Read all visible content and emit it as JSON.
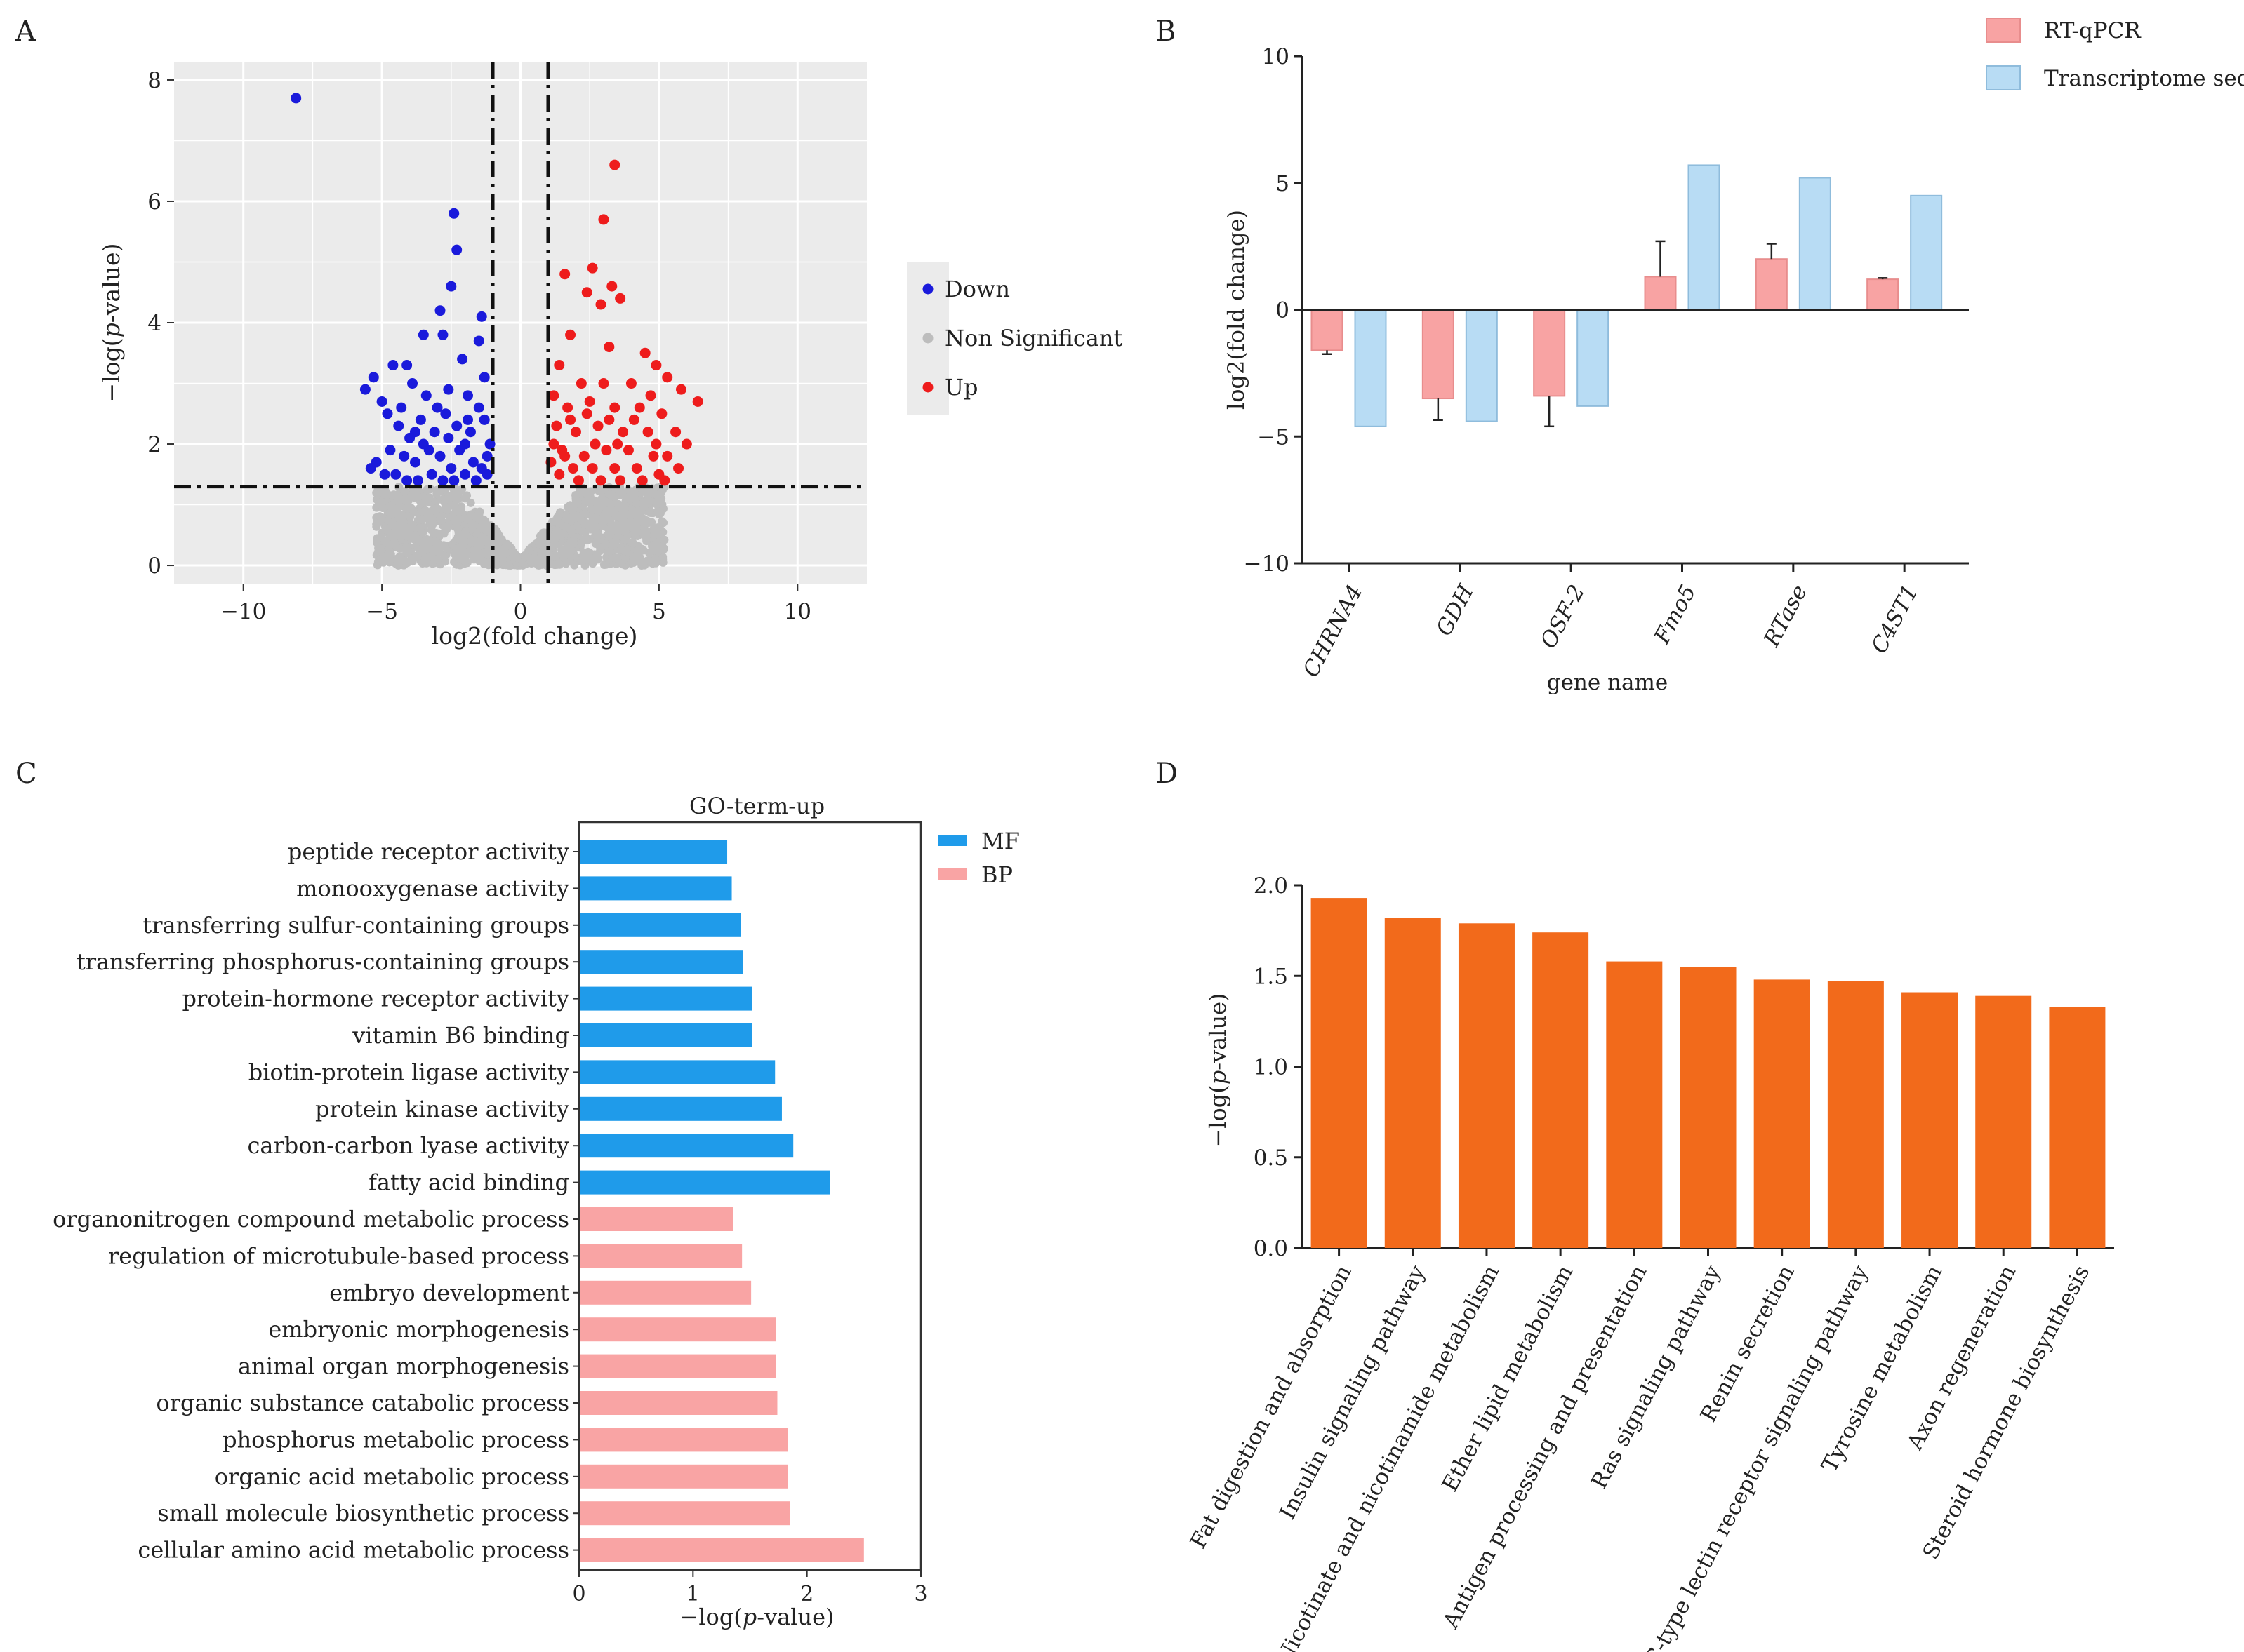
{
  "colors": {
    "down": "#1a1adb",
    "up": "#ee1c1c",
    "nonsig": "#bdbdbd",
    "panel_bg": "#ebebeb",
    "grid": "#ffffff",
    "rtqpcr": "#f8a3a3",
    "transcriptome": "#b8dcf4",
    "mf": "#1f9bea",
    "bp": "#f9a4a4",
    "kegg": "#f26a1b"
  },
  "panels": {
    "a": "A",
    "b": "B",
    "c": "C",
    "d": "D"
  },
  "chart_data": [
    {
      "id": "A",
      "type": "scatter",
      "title": "",
      "xlabel": "log2(fold change)",
      "ylabel_parts": [
        "−log(",
        "p",
        "-value)"
      ],
      "xlim": [
        -12.5,
        12.5
      ],
      "ylim": [
        -0.3,
        8.3
      ],
      "xticks": [
        -10,
        -5,
        0,
        5,
        10
      ],
      "xtick_labels": [
        "−10",
        "−5",
        "0",
        "5",
        "10"
      ],
      "yticks": [
        0,
        2,
        4,
        6,
        8
      ],
      "ytick_labels": [
        "0",
        "2",
        "4",
        "6",
        "8"
      ],
      "thresholds": {
        "x": [
          -1,
          1
        ],
        "y": 1.3
      },
      "legend": [
        "Down",
        "Non Significant",
        "Up"
      ],
      "legend_position": "right",
      "series": [
        {
          "name": "Down",
          "points": [
            [
              -8.1,
              7.7
            ],
            [
              -2.4,
              5.8
            ],
            [
              -2.3,
              5.2
            ],
            [
              -2.5,
              4.6
            ],
            [
              -2.9,
              4.2
            ],
            [
              -1.4,
              4.1
            ],
            [
              -3.5,
              3.8
            ],
            [
              -5.3,
              3.1
            ],
            [
              -5.6,
              2.9
            ],
            [
              -5.0,
              2.7
            ],
            [
              -4.6,
              3.3
            ],
            [
              -4.1,
              3.3
            ],
            [
              -2.8,
              3.8
            ],
            [
              -2.1,
              3.4
            ],
            [
              -1.5,
              3.7
            ],
            [
              -1.3,
              3.1
            ],
            [
              -3.9,
              3.0
            ],
            [
              -3.4,
              2.8
            ],
            [
              -2.6,
              2.9
            ],
            [
              -1.9,
              2.8
            ],
            [
              -4.8,
              2.5
            ],
            [
              -4.4,
              2.3
            ],
            [
              -4.0,
              2.1
            ],
            [
              -3.6,
              2.4
            ],
            [
              -3.1,
              2.2
            ],
            [
              -2.7,
              2.5
            ],
            [
              -2.3,
              2.3
            ],
            [
              -1.8,
              2.2
            ],
            [
              -1.3,
              2.4
            ],
            [
              -4.7,
              1.9
            ],
            [
              -4.2,
              1.8
            ],
            [
              -3.8,
              1.7
            ],
            [
              -3.3,
              1.9
            ],
            [
              -2.9,
              1.8
            ],
            [
              -2.5,
              1.6
            ],
            [
              -2.2,
              1.9
            ],
            [
              -1.7,
              1.7
            ],
            [
              -1.2,
              1.8
            ],
            [
              -5.2,
              1.7
            ],
            [
              -4.9,
              1.5
            ],
            [
              -4.5,
              1.5
            ],
            [
              -4.1,
              1.4
            ],
            [
              -3.7,
              1.4
            ],
            [
              -3.2,
              1.5
            ],
            [
              -2.8,
              1.4
            ],
            [
              -2.4,
              1.4
            ],
            [
              -2.0,
              1.5
            ],
            [
              -1.6,
              1.4
            ],
            [
              -1.2,
              1.5
            ],
            [
              -3.5,
              2.0
            ],
            [
              -3.0,
              2.6
            ],
            [
              -2.0,
              2.0
            ],
            [
              -1.5,
              2.6
            ],
            [
              -1.4,
              1.6
            ],
            [
              -1.1,
              2.0
            ],
            [
              -5.4,
              1.6
            ],
            [
              -4.3,
              2.6
            ],
            [
              -3.8,
              2.2
            ],
            [
              -2.6,
              2.1
            ],
            [
              -1.9,
              2.4
            ]
          ]
        },
        {
          "name": "Up",
          "points": [
            [
              3.4,
              6.6
            ],
            [
              3.0,
              5.7
            ],
            [
              2.6,
              4.9
            ],
            [
              3.6,
              4.4
            ],
            [
              2.9,
              4.3
            ],
            [
              3.3,
              4.6
            ],
            [
              1.8,
              3.8
            ],
            [
              3.2,
              3.6
            ],
            [
              1.6,
              4.8
            ],
            [
              2.4,
              4.5
            ],
            [
              4.5,
              3.5
            ],
            [
              4.9,
              3.3
            ],
            [
              5.3,
              3.1
            ],
            [
              5.8,
              2.9
            ],
            [
              6.4,
              2.7
            ],
            [
              1.4,
              3.3
            ],
            [
              2.2,
              3.0
            ],
            [
              3.0,
              3.0
            ],
            [
              4.0,
              3.0
            ],
            [
              4.7,
              2.8
            ],
            [
              1.2,
              2.8
            ],
            [
              1.7,
              2.6
            ],
            [
              2.5,
              2.7
            ],
            [
              3.4,
              2.6
            ],
            [
              4.3,
              2.6
            ],
            [
              5.1,
              2.5
            ],
            [
              5.6,
              2.2
            ],
            [
              1.3,
              2.3
            ],
            [
              2.0,
              2.2
            ],
            [
              2.8,
              2.3
            ],
            [
              3.7,
              2.2
            ],
            [
              4.6,
              2.2
            ],
            [
              5.3,
              1.8
            ],
            [
              6.0,
              2.0
            ],
            [
              1.5,
              1.9
            ],
            [
              2.3,
              1.8
            ],
            [
              3.1,
              1.9
            ],
            [
              3.9,
              1.9
            ],
            [
              4.8,
              1.8
            ],
            [
              1.1,
              1.7
            ],
            [
              1.9,
              1.6
            ],
            [
              2.6,
              1.6
            ],
            [
              3.4,
              1.6
            ],
            [
              4.2,
              1.6
            ],
            [
              5.0,
              1.5
            ],
            [
              5.7,
              1.6
            ],
            [
              1.4,
              1.5
            ],
            [
              2.1,
              1.4
            ],
            [
              2.9,
              1.4
            ],
            [
              3.6,
              1.4
            ],
            [
              4.4,
              1.4
            ],
            [
              5.2,
              1.4
            ],
            [
              1.2,
              2.0
            ],
            [
              2.7,
              2.0
            ],
            [
              3.5,
              2.0
            ],
            [
              4.1,
              2.4
            ],
            [
              1.8,
              2.4
            ],
            [
              2.4,
              2.5
            ],
            [
              3.2,
              2.4
            ],
            [
              1.6,
              1.8
            ],
            [
              4.9,
              2.0
            ]
          ]
        }
      ]
    },
    {
      "id": "B",
      "type": "bar",
      "title": "",
      "xlabel": "gene name",
      "ylabel": "log2(fold change)",
      "ylim": [
        -10,
        10
      ],
      "yticks": [
        -10,
        -5,
        0,
        5,
        10
      ],
      "ytick_labels": [
        "−10",
        "−5",
        "0",
        "5",
        "10"
      ],
      "categories": [
        "CHRNA4",
        "GDH",
        "OSF-2",
        "Fmo5",
        "RTase",
        "C4ST1"
      ],
      "legend_position": "top-right",
      "series": [
        {
          "name": "RT-qPCR",
          "values": [
            -1.6,
            -3.5,
            -3.4,
            1.3,
            2.0,
            1.2
          ],
          "errors": [
            0.15,
            0.85,
            1.2,
            1.4,
            0.6,
            0.05
          ]
        },
        {
          "name": "Transcriptome seq",
          "values": [
            -4.6,
            -4.4,
            -3.8,
            5.7,
            5.2,
            4.5
          ]
        }
      ]
    },
    {
      "id": "C",
      "type": "bar",
      "orientation": "horizontal",
      "title": "GO-term-up",
      "xlabel_parts": [
        "−log(",
        "p",
        "-value)"
      ],
      "xlim": [
        0,
        3
      ],
      "xticks": [
        0,
        1,
        2,
        3
      ],
      "xtick_labels": [
        "0",
        "1",
        "2",
        "3"
      ],
      "legend": [
        "MF",
        "BP"
      ],
      "legend_position": "right",
      "categories": [
        "peptide receptor activity",
        "monooxygenase activity",
        "transferring sulfur-containing groups",
        "transferring phosphorus-containing groups",
        "protein-hormone receptor activity",
        "vitamin B6 binding",
        "biotin-protein ligase activity",
        "protein kinase activity",
        "carbon-carbon lyase activity",
        "fatty acid binding",
        "organonitrogen compound metabolic process",
        "regulation of microtubule-based process",
        "embryo development",
        "embryonic morphogenesis",
        "animal organ morphogenesis",
        "organic substance catabolic process",
        "phosphorus metabolic process",
        "organic acid metabolic process",
        "small molecule biosynthetic process",
        "cellular amino acid metabolic process"
      ],
      "values": [
        1.3,
        1.34,
        1.42,
        1.44,
        1.52,
        1.52,
        1.72,
        1.78,
        1.88,
        2.2,
        1.35,
        1.43,
        1.51,
        1.73,
        1.73,
        1.74,
        1.83,
        1.83,
        1.85,
        2.5
      ],
      "groups": [
        "MF",
        "MF",
        "MF",
        "MF",
        "MF",
        "MF",
        "MF",
        "MF",
        "MF",
        "MF",
        "BP",
        "BP",
        "BP",
        "BP",
        "BP",
        "BP",
        "BP",
        "BP",
        "BP",
        "BP"
      ]
    },
    {
      "id": "D",
      "type": "bar",
      "title": "",
      "xlabel": "",
      "ylabel_parts": [
        "−log(",
        "p",
        "-value)"
      ],
      "ylim": [
        0,
        2.0
      ],
      "yticks": [
        0,
        0.5,
        1.0,
        1.5,
        2.0
      ],
      "ytick_labels": [
        "0.0",
        "0.5",
        "1.0",
        "1.5",
        "2.0"
      ],
      "categories": [
        "Fat digestion and absorption",
        "Insulin signaling pathway",
        "Nicotinate and nicotinamide metabolism",
        "Ether lipid metabolism",
        "Antigen processing and presentation",
        "Ras signaling pathway",
        "Renin secretion",
        "C-type lectin receptor signaling pathway",
        "Tyrosine metabolism",
        "Axon regeneration",
        "Steroid hormone biosynthesis"
      ],
      "values": [
        1.93,
        1.82,
        1.79,
        1.74,
        1.58,
        1.55,
        1.48,
        1.47,
        1.41,
        1.39,
        1.33
      ]
    }
  ]
}
